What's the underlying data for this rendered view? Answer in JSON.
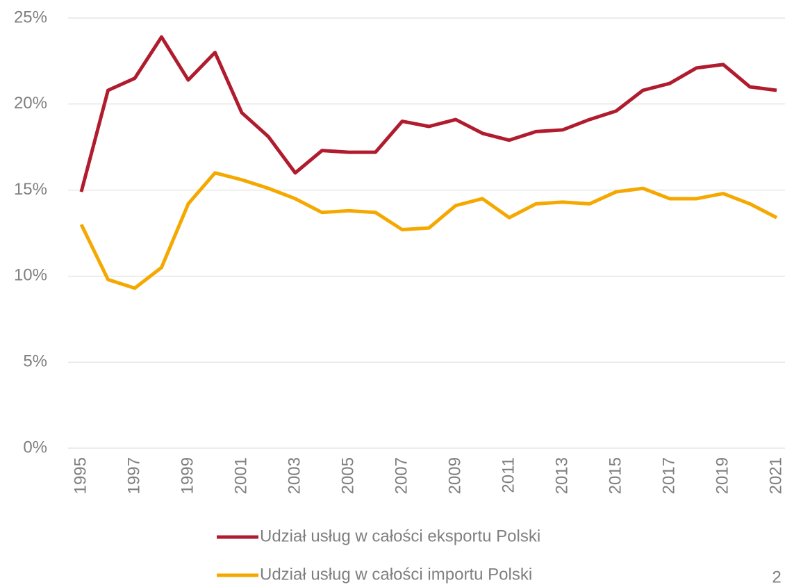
{
  "chart_data": {
    "type": "line",
    "categories": [
      "1995",
      null,
      "1997",
      null,
      "1999",
      null,
      "2001",
      null,
      "2003",
      null,
      "2005",
      null,
      "2007",
      null,
      "2009",
      null,
      "2011",
      null,
      "2013",
      null,
      "2015",
      null,
      "2017",
      null,
      "2019",
      null,
      "2021"
    ],
    "series": [
      {
        "name": "Udział usług w całości eksportu Polski",
        "color": "#b01c2e",
        "values": [
          14.9,
          20.8,
          21.5,
          23.9,
          21.4,
          23.0,
          19.5,
          18.1,
          16.0,
          17.3,
          17.2,
          17.2,
          19.0,
          18.7,
          19.1,
          18.3,
          17.9,
          18.4,
          18.5,
          19.1,
          19.6,
          20.8,
          21.2,
          22.1,
          22.3,
          21.0,
          20.8
        ]
      },
      {
        "name": "Udział usług w całości importu Polski",
        "color": "#f5a800",
        "values": [
          13.0,
          9.8,
          9.3,
          10.5,
          14.2,
          16.0,
          15.6,
          15.1,
          14.5,
          13.7,
          13.8,
          13.7,
          12.7,
          12.8,
          14.1,
          14.5,
          13.4,
          14.2,
          14.3,
          14.2,
          14.9,
          15.1,
          14.5,
          14.5,
          14.8,
          14.2,
          13.4
        ]
      }
    ],
    "ylim": [
      0,
      25
    ],
    "yticks": [
      {
        "value": 0,
        "label": "0%"
      },
      {
        "value": 5,
        "label": "5%"
      },
      {
        "value": 10,
        "label": "10%"
      },
      {
        "value": 15,
        "label": "15%"
      },
      {
        "value": 20,
        "label": "20%"
      },
      {
        "value": 25,
        "label": "25%"
      }
    ],
    "grid": true,
    "page_number": "2"
  }
}
